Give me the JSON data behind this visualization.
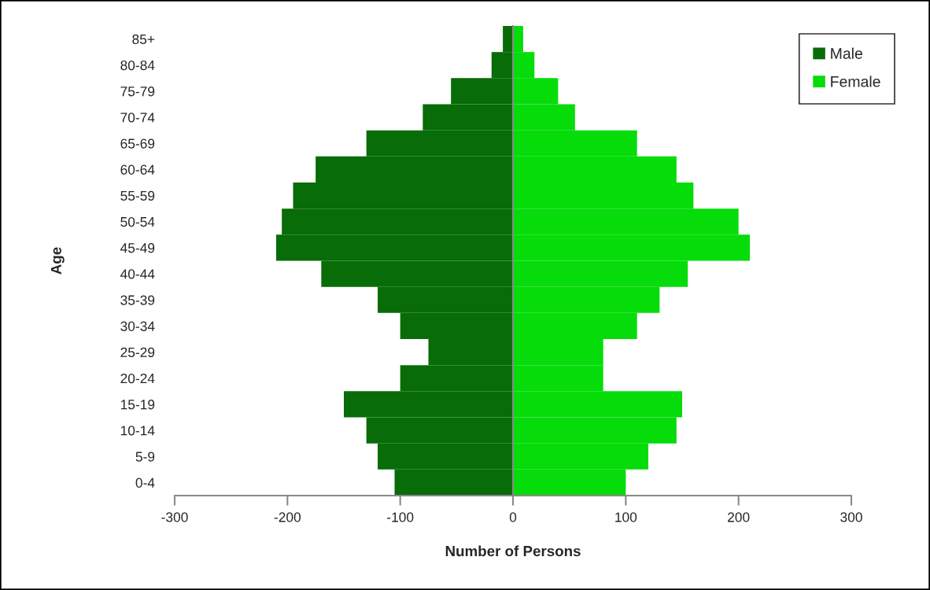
{
  "chart_data": {
    "type": "bar",
    "orientation": "horizontal",
    "stacked": true,
    "xlabel": "Number of Persons",
    "ylabel": "Age",
    "categories": [
      "85+",
      "80-84",
      "75-79",
      "70-74",
      "65-69",
      "60-64",
      "55-59",
      "50-54",
      "45-49",
      "40-44",
      "35-39",
      "30-34",
      "25-29",
      "20-24",
      "15-19",
      "10-14",
      "5-9",
      "0-4"
    ],
    "series": [
      {
        "name": "Male",
        "color": "#086c08",
        "values": [
          -9,
          -19,
          -55,
          -80,
          -130,
          -175,
          -195,
          -205,
          -210,
          -170,
          -120,
          -100,
          -75,
          -100,
          -150,
          -130,
          -120,
          -105
        ]
      },
      {
        "name": "Female",
        "color": "#05dc0a",
        "values": [
          9,
          19,
          40,
          55,
          110,
          145,
          160,
          200,
          210,
          155,
          130,
          110,
          80,
          80,
          150,
          145,
          120,
          100
        ]
      }
    ],
    "xlim": [
      -300,
      300
    ],
    "xticks": [
      -300,
      -200,
      -100,
      0,
      100,
      200,
      300
    ],
    "legend": "top right"
  }
}
